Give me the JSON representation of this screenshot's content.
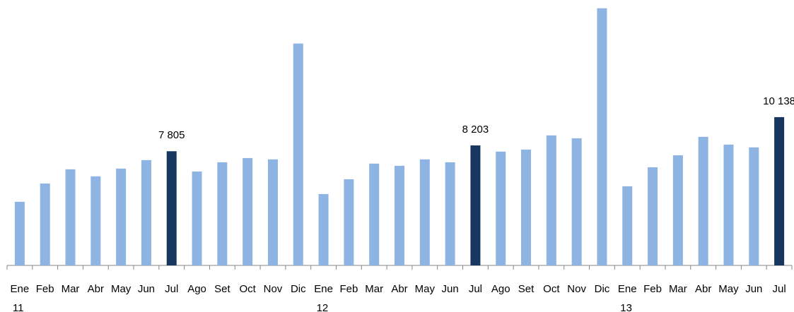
{
  "chart_data": {
    "type": "bar",
    "categories": [
      "Ene",
      "Feb",
      "Mar",
      "Abr",
      "May",
      "Jun",
      "Jul",
      "Ago",
      "Set",
      "Oct",
      "Nov",
      "Dic",
      "Ene",
      "Feb",
      "Mar",
      "Abr",
      "May",
      "Jun",
      "Jul",
      "Ago",
      "Set",
      "Oct",
      "Nov",
      "Dic",
      "Ene",
      "Feb",
      "Mar",
      "Abr",
      "May",
      "Jun",
      "Jul"
    ],
    "category_years": [
      "11",
      null,
      null,
      null,
      null,
      null,
      null,
      null,
      null,
      null,
      null,
      null,
      "12",
      null,
      null,
      null,
      null,
      null,
      null,
      null,
      null,
      null,
      null,
      null,
      "13",
      null,
      null,
      null,
      null,
      null,
      null
    ],
    "values": [
      4350,
      5600,
      6570,
      6090,
      6620,
      7200,
      7805,
      6420,
      7050,
      7340,
      7250,
      15170,
      4880,
      5890,
      6960,
      6810,
      7250,
      7050,
      8203,
      7780,
      7920,
      8890,
      8690,
      17580,
      5410,
      6710,
      7530,
      8790,
      8260,
      8070,
      10138
    ],
    "value_labels": [
      null,
      null,
      null,
      null,
      null,
      null,
      "7 805",
      null,
      null,
      null,
      null,
      null,
      null,
      null,
      null,
      null,
      null,
      null,
      "8 203",
      null,
      null,
      null,
      null,
      null,
      null,
      null,
      null,
      null,
      null,
      null,
      "10 138"
    ],
    "colors": [
      "#8eb4e3",
      "#8eb4e3",
      "#8eb4e3",
      "#8eb4e3",
      "#8eb4e3",
      "#8eb4e3",
      "#17375e",
      "#8eb4e3",
      "#8eb4e3",
      "#8eb4e3",
      "#8eb4e3",
      "#8eb4e3",
      "#8eb4e3",
      "#8eb4e3",
      "#8eb4e3",
      "#8eb4e3",
      "#8eb4e3",
      "#8eb4e3",
      "#17375e",
      "#8eb4e3",
      "#8eb4e3",
      "#8eb4e3",
      "#8eb4e3",
      "#8eb4e3",
      "#8eb4e3",
      "#8eb4e3",
      "#8eb4e3",
      "#8eb4e3",
      "#8eb4e3",
      "#8eb4e3",
      "#17375e"
    ],
    "ylim": [
      0,
      18000
    ]
  }
}
